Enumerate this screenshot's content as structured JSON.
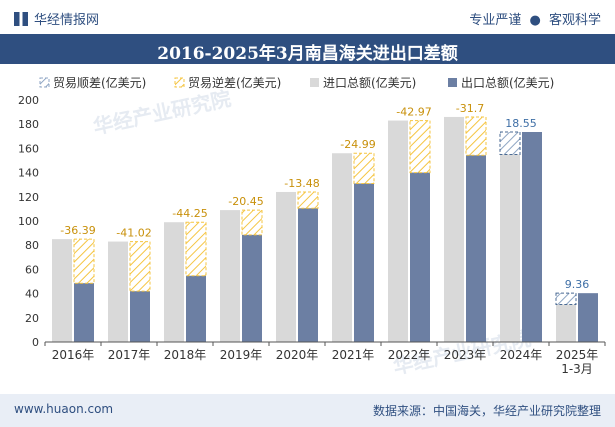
{
  "header": {
    "brand": "华经情报网",
    "tagline_left": "专业严谨",
    "tagline_sep": "●",
    "tagline_right": "客观科学"
  },
  "title": "2016-2025年3月南昌海关进出口差额",
  "footer": {
    "site": "www.huaon.com",
    "source": "数据来源：中国海关，华经产业研究院整理"
  },
  "watermark": "华经产业研究院",
  "colors": {
    "title_bg": "#2f4f80",
    "import": "#d9d9d9",
    "export": "#6c7fa3",
    "deficit_hatch": "#f5c542",
    "surplus_hatch": "#8fa6c4",
    "label_deficit": "#c8900a",
    "label_surplus": "#3f6fa6"
  },
  "chart_data": {
    "type": "bar",
    "categories": [
      "2016年",
      "2017年",
      "2018年",
      "2019年",
      "2020年",
      "2021年",
      "2022年",
      "2023年",
      "2024年",
      "2025年\n1-3月"
    ],
    "series": [
      {
        "name": "进口总额(亿美元)",
        "values": [
          85,
          83,
          99,
          109,
          124,
          156,
          183,
          186,
          155,
          31
        ]
      },
      {
        "name": "出口总额(亿美元)",
        "values": [
          48.6,
          42,
          54.75,
          88.55,
          110.52,
          131.01,
          140.03,
          154.3,
          173.55,
          40.36
        ]
      }
    ],
    "balance": {
      "labels": [
        "-36.39",
        "-41.02",
        "-44.25",
        "-20.45",
        "-13.48",
        "-24.99",
        "-42.97",
        "-31.7",
        "18.55",
        "9.36"
      ],
      "values": [
        -36.39,
        -41.02,
        -44.25,
        -20.45,
        -13.48,
        -24.99,
        -42.97,
        -31.7,
        18.55,
        9.36
      ]
    },
    "legend": [
      "贸易顺差(亿美元)",
      "贸易逆差(亿美元)",
      "进口总额(亿美元)",
      "出口总额(亿美元)"
    ],
    "legend_position": "top",
    "ylim": [
      0,
      200
    ],
    "yticks": [
      0,
      20,
      40,
      60,
      80,
      100,
      120,
      140,
      160,
      180,
      200
    ],
    "grid": false
  }
}
